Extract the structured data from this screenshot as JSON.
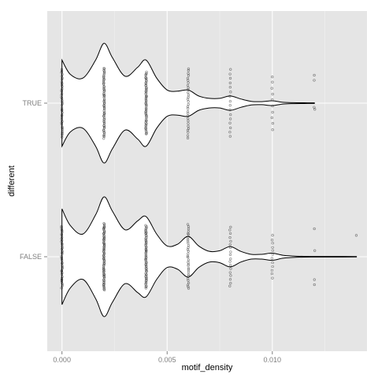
{
  "chart_data": {
    "type": "violin",
    "title": "",
    "xlabel": "motif_density",
    "ylabel": "different",
    "xlim": [
      -0.0007,
      0.0145
    ],
    "x_ticks": [
      0.0,
      0.005,
      0.01
    ],
    "x_tick_labels": [
      "0.000",
      "0.005",
      "0.010"
    ],
    "categories": [
      "FALSE",
      "TRUE"
    ],
    "grid": true,
    "legend": "none",
    "colors": {
      "panel_bg": "#e5e5e5",
      "grid_major": "#ffffff",
      "grid_minor": "#f2f2f2",
      "violin_fill": "#ffffff",
      "violin_stroke": "#000000",
      "point": "#000000",
      "tick_text": "#7f7f7f"
    },
    "series": [
      {
        "category": "TRUE",
        "density_profile": [
          [
            0.0,
            0.72
          ],
          [
            0.0004,
            0.48
          ],
          [
            0.001,
            0.42
          ],
          [
            0.0016,
            0.72
          ],
          [
            0.002,
            1.0
          ],
          [
            0.0024,
            0.76
          ],
          [
            0.003,
            0.45
          ],
          [
            0.0036,
            0.6
          ],
          [
            0.004,
            0.72
          ],
          [
            0.0045,
            0.42
          ],
          [
            0.005,
            0.22
          ],
          [
            0.0055,
            0.2
          ],
          [
            0.006,
            0.22
          ],
          [
            0.0065,
            0.12
          ],
          [
            0.007,
            0.08
          ],
          [
            0.0075,
            0.08
          ],
          [
            0.008,
            0.12
          ],
          [
            0.0085,
            0.07
          ],
          [
            0.009,
            0.03
          ],
          [
            0.0095,
            0.025
          ],
          [
            0.01,
            0.04
          ],
          [
            0.0105,
            0.015
          ],
          [
            0.011,
            0.008
          ],
          [
            0.0115,
            0.006
          ],
          [
            0.012,
            0.005
          ]
        ],
        "points": [
          {
            "x": 0.0,
            "spread": 0.68,
            "n": 40
          },
          {
            "x": 0.002,
            "spread": 0.7,
            "n": 60
          },
          {
            "x": 0.004,
            "spread": 0.62,
            "n": 55
          },
          {
            "x": 0.006,
            "spread": 0.7,
            "n": 30
          },
          {
            "x": 0.008,
            "spread": 0.7,
            "n": 16
          },
          {
            "x": 0.01,
            "spread": 0.58,
            "n": 10
          },
          {
            "x": 0.012,
            "values": [
              0.12,
              0.08,
              -0.45,
              -0.55
            ]
          }
        ]
      },
      {
        "category": "FALSE",
        "density_profile": [
          [
            0.0,
            0.8
          ],
          [
            0.0004,
            0.52
          ],
          [
            0.001,
            0.38
          ],
          [
            0.0016,
            0.7
          ],
          [
            0.002,
            1.0
          ],
          [
            0.0024,
            0.76
          ],
          [
            0.003,
            0.45
          ],
          [
            0.0036,
            0.6
          ],
          [
            0.004,
            0.67
          ],
          [
            0.0045,
            0.38
          ],
          [
            0.005,
            0.18
          ],
          [
            0.0055,
            0.21
          ],
          [
            0.006,
            0.34
          ],
          [
            0.0065,
            0.18
          ],
          [
            0.007,
            0.09
          ],
          [
            0.0075,
            0.1
          ],
          [
            0.008,
            0.17
          ],
          [
            0.0085,
            0.09
          ],
          [
            0.009,
            0.04
          ],
          [
            0.0095,
            0.04
          ],
          [
            0.01,
            0.06
          ],
          [
            0.0105,
            0.025
          ],
          [
            0.011,
            0.012
          ],
          [
            0.0115,
            0.006
          ],
          [
            0.012,
            0.005
          ],
          [
            0.013,
            0.005
          ],
          [
            0.014,
            0.004
          ]
        ],
        "points": [
          {
            "x": 0.0,
            "spread": 0.62,
            "n": 40
          },
          {
            "x": 0.002,
            "spread": 0.66,
            "n": 70
          },
          {
            "x": 0.004,
            "spread": 0.62,
            "n": 60
          },
          {
            "x": 0.006,
            "spread": 0.65,
            "n": 32
          },
          {
            "x": 0.008,
            "spread": 0.62,
            "n": 18
          },
          {
            "x": 0.01,
            "spread": 0.45,
            "n": 12
          },
          {
            "x": 0.012,
            "values": [
              0.55,
              0.45,
              -0.12,
              -0.55
            ]
          },
          {
            "x": 0.014,
            "values": [
              -0.42
            ]
          }
        ]
      }
    ]
  }
}
